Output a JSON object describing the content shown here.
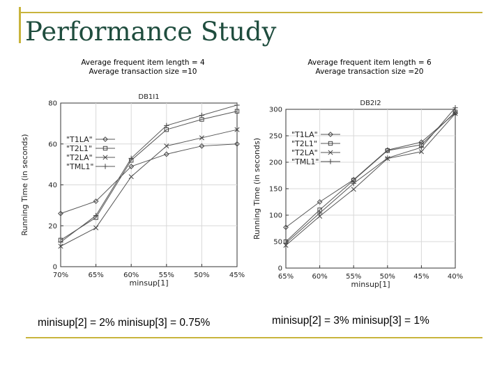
{
  "slide": {
    "title": "Performance Study",
    "accent_color": "#c8b43c",
    "title_color": "#1f4d3e"
  },
  "panels": [
    {
      "caption_line1": "Average frequent item length = 4",
      "caption_line2": "Average transaction size =10",
      "footer": "minisup[2] = 2%  minisup[3] = 0.75%"
    },
    {
      "caption_line1": "Average frequent item length = 6",
      "caption_line2": "Average transaction size =20",
      "footer": "minisup[2] = 3%  minisup[3] = 1%"
    }
  ],
  "chart_data": [
    {
      "type": "line",
      "title": "DB1I1",
      "xlabel": "minsup[1]",
      "ylabel": "Running Time (in seconds)",
      "categories": [
        "70%",
        "65%",
        "60%",
        "55%",
        "50%",
        "45%"
      ],
      "ylim": [
        0,
        80
      ],
      "yticks": [
        0,
        20,
        40,
        60,
        80
      ],
      "grid": true,
      "legend_position": "left",
      "series": [
        {
          "name": "\"T1LA\"",
          "marker": "diamond",
          "values": [
            26,
            32,
            49,
            55,
            59,
            60
          ]
        },
        {
          "name": "\"T2L1\"",
          "marker": "square",
          "values": [
            13,
            24,
            52,
            67,
            72,
            76
          ]
        },
        {
          "name": "\"T2LA\"",
          "marker": "x",
          "values": [
            10,
            19,
            44,
            59,
            63,
            67
          ]
        },
        {
          "name": "\"TML1\"",
          "marker": "plus",
          "values": [
            12,
            25,
            53,
            69,
            74,
            79
          ]
        }
      ]
    },
    {
      "type": "line",
      "title": "DB2I2",
      "xlabel": "minsup[1]",
      "ylabel": "Running Time (in seconds)",
      "categories": [
        "65%",
        "60%",
        "55%",
        "50%",
        "45%",
        "40%"
      ],
      "ylim": [
        0,
        300
      ],
      "yticks": [
        0,
        50,
        100,
        150,
        200,
        250,
        300
      ],
      "grid": true,
      "legend_position": "left",
      "series": [
        {
          "name": "\"T1LA\"",
          "marker": "diamond",
          "values": [
            77,
            125,
            167,
            223,
            238,
            293
          ]
        },
        {
          "name": "\"T2L1\"",
          "marker": "square",
          "values": [
            50,
            110,
            166,
            222,
            233,
            295
          ]
        },
        {
          "name": "\"T2LA\"",
          "marker": "x",
          "values": [
            43,
            98,
            149,
            207,
            220,
            292
          ]
        },
        {
          "name": "\"TML1\"",
          "marker": "plus",
          "values": [
            47,
            104,
            160,
            208,
            228,
            303
          ]
        }
      ]
    }
  ]
}
